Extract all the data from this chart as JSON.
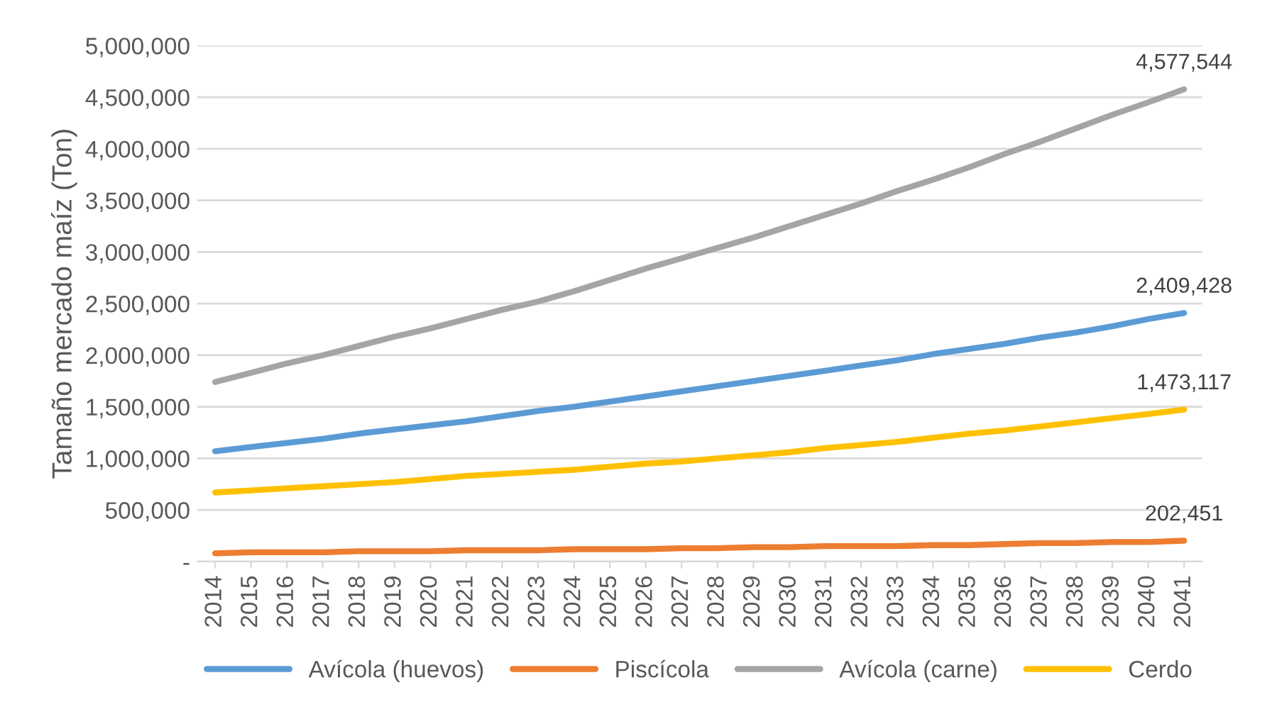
{
  "chart_data": {
    "type": "line",
    "ylabel": "Tamaño mercado maíz (Ton)",
    "categories": [
      "2014",
      "2015",
      "2016",
      "2017",
      "2018",
      "2019",
      "2020",
      "2021",
      "2022",
      "2023",
      "2024",
      "2025",
      "2026",
      "2027",
      "2028",
      "2029",
      "2030",
      "2031",
      "2032",
      "2033",
      "2034",
      "2035",
      "2036",
      "2037",
      "2038",
      "2039",
      "2040",
      "2041"
    ],
    "series": [
      {
        "name": "Avícola (huevos)",
        "color": "#5b9bd5",
        "values": [
          1070000,
          1110000,
          1150000,
          1190000,
          1240000,
          1280000,
          1320000,
          1360000,
          1410000,
          1460000,
          1500000,
          1550000,
          1600000,
          1650000,
          1700000,
          1750000,
          1800000,
          1850000,
          1900000,
          1950000,
          2010000,
          2060000,
          2110000,
          2170000,
          2220000,
          2280000,
          2350000,
          2409428
        ],
        "value_labels": [
          null,
          null,
          null,
          null,
          null,
          null,
          null,
          null,
          null,
          null,
          null,
          null,
          null,
          null,
          null,
          null,
          null,
          null,
          null,
          null,
          null,
          null,
          null,
          null,
          null,
          null,
          null,
          "2,409,428"
        ]
      },
      {
        "name": "Piscícola",
        "color": "#ed7d31",
        "values": [
          80000,
          90000,
          90000,
          90000,
          100000,
          100000,
          100000,
          110000,
          110000,
          110000,
          120000,
          120000,
          120000,
          130000,
          130000,
          140000,
          140000,
          150000,
          150000,
          150000,
          160000,
          160000,
          170000,
          180000,
          180000,
          190000,
          190000,
          202451
        ],
        "value_labels": [
          null,
          null,
          null,
          null,
          null,
          null,
          null,
          null,
          null,
          null,
          null,
          null,
          null,
          null,
          null,
          null,
          null,
          null,
          null,
          null,
          null,
          null,
          null,
          null,
          null,
          null,
          null,
          "202,451"
        ]
      },
      {
        "name": "Avícola (carne)",
        "color": "#a5a5a5",
        "values": [
          1740000,
          1830000,
          1920000,
          2000000,
          2090000,
          2180000,
          2260000,
          2350000,
          2440000,
          2520000,
          2620000,
          2730000,
          2840000,
          2940000,
          3040000,
          3140000,
          3250000,
          3360000,
          3470000,
          3590000,
          3700000,
          3820000,
          3950000,
          4070000,
          4200000,
          4330000,
          4450000,
          4577544
        ],
        "value_labels": [
          null,
          null,
          null,
          null,
          null,
          null,
          null,
          null,
          null,
          null,
          null,
          null,
          null,
          null,
          null,
          null,
          null,
          null,
          null,
          null,
          null,
          null,
          null,
          null,
          null,
          null,
          null,
          "4,577,544"
        ]
      },
      {
        "name": "Cerdo",
        "color": "#ffc000",
        "values": [
          670000,
          690000,
          710000,
          730000,
          750000,
          770000,
          800000,
          830000,
          850000,
          870000,
          890000,
          920000,
          950000,
          970000,
          1000000,
          1030000,
          1060000,
          1100000,
          1130000,
          1160000,
          1200000,
          1240000,
          1270000,
          1310000,
          1350000,
          1390000,
          1430000,
          1473117
        ],
        "value_labels": [
          null,
          null,
          null,
          null,
          null,
          null,
          null,
          null,
          null,
          null,
          null,
          null,
          null,
          null,
          null,
          null,
          null,
          null,
          null,
          null,
          null,
          null,
          null,
          null,
          null,
          null,
          null,
          "1,473,117"
        ]
      }
    ],
    "ylim": [
      0,
      5000000
    ],
    "yticks": [
      {
        "value": 0,
        "label": "-"
      },
      {
        "value": 500000,
        "label": "500,000"
      },
      {
        "value": 1000000,
        "label": "1,000,000"
      },
      {
        "value": 1500000,
        "label": "1,500,000"
      },
      {
        "value": 2000000,
        "label": "2,000,000"
      },
      {
        "value": 2500000,
        "label": "2,500,000"
      },
      {
        "value": 3000000,
        "label": "3,000,000"
      },
      {
        "value": 3500000,
        "label": "3,500,000"
      },
      {
        "value": 4000000,
        "label": "4,000,000"
      },
      {
        "value": 4500000,
        "label": "4,500,000"
      },
      {
        "value": 5000000,
        "label": "5,000,000"
      }
    ],
    "grid": "y",
    "legend": "bottom",
    "marker": "none",
    "line_style": "solid"
  }
}
